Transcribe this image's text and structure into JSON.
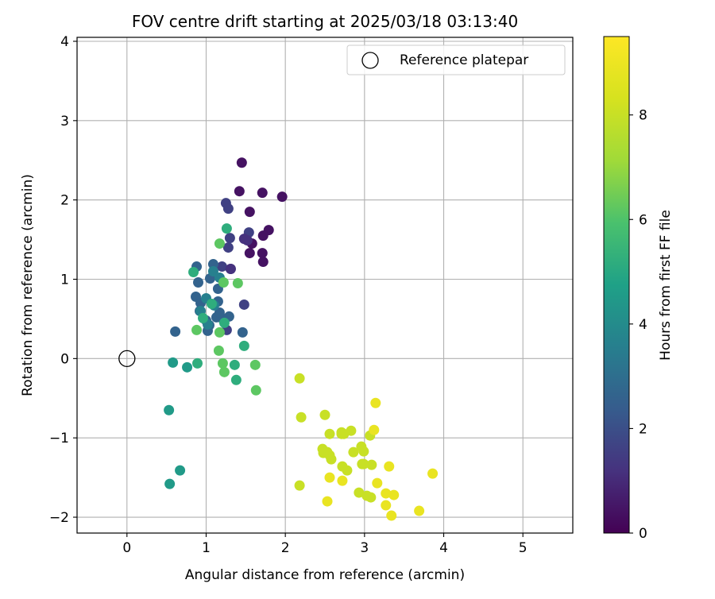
{
  "chart_data": {
    "type": "scatter",
    "title": "FOV centre drift starting at 2025/03/18 03:13:40",
    "xlabel": "Angular distance from reference (arcmin)",
    "ylabel": "Rotation from reference (arcmin)",
    "xlim": [
      -0.63,
      5.63
    ],
    "ylim": [
      -2.2,
      4.05
    ],
    "xticks": [
      "0",
      "1",
      "2",
      "3",
      "4",
      "5"
    ],
    "yticks": [
      "−2",
      "−1",
      "0",
      "1",
      "2",
      "3",
      "4"
    ],
    "grid": true,
    "legend": {
      "position": "top-right",
      "entries": [
        "Reference platepar"
      ]
    },
    "reference_point": {
      "x": 0,
      "y": 0,
      "label": "Reference platepar"
    },
    "colorbar": {
      "label": "Hours from first FF file",
      "colormap": "viridis",
      "range": [
        0,
        9.5
      ],
      "ticks": [
        "0",
        "2",
        "4",
        "6",
        "8"
      ]
    },
    "series": [
      {
        "x": [
          1.45,
          1.96,
          1.71,
          1.42,
          1.55,
          1.58,
          1.79,
          1.72,
          1.71,
          1.55,
          1.72
        ],
        "y": [
          2.47,
          2.04,
          2.09,
          2.11,
          1.85,
          1.45,
          1.62,
          1.55,
          1.33,
          1.33,
          1.22
        ],
        "hours": 0.4
      },
      {
        "x": [
          1.25,
          1.28,
          1.54,
          1.3,
          1.28,
          1.31,
          1.2,
          1.48,
          1.26
        ],
        "y": [
          1.96,
          1.89,
          1.59,
          1.52,
          1.4,
          1.13,
          1.16,
          0.68,
          0.36
        ],
        "hours": 1.6
      },
      {
        "x": [
          0.88,
          0.9,
          0.87,
          0.93,
          1.09,
          1.05,
          1.15,
          1.15,
          0.92,
          1.13,
          1.21,
          1.29,
          1.17,
          1.0,
          1.04,
          1.02,
          1.46,
          0.61
        ],
        "y": [
          1.16,
          0.96,
          0.78,
          0.7,
          1.19,
          1.01,
          0.88,
          0.72,
          0.6,
          0.52,
          0.5,
          0.53,
          0.58,
          0.48,
          0.42,
          0.35,
          0.33,
          0.34
        ],
        "hours": 2.6
      },
      {
        "x": [
          1.09,
          1.17,
          1.0,
          1.1,
          0.93,
          1.02
        ],
        "y": [
          1.1,
          1.02,
          0.76,
          0.67,
          0.6,
          0.43
        ],
        "hours": 3.6
      },
      {
        "x": [
          0.76,
          0.67,
          0.54,
          0.53,
          0.58
        ],
        "y": [
          -0.11,
          -1.41,
          -1.58,
          -0.65,
          -0.05
        ],
        "hours": 4.5
      },
      {
        "x": [
          1.26,
          0.84,
          0.96,
          1.07,
          1.23,
          1.48,
          1.36,
          1.38,
          0.89
        ],
        "y": [
          1.64,
          1.09,
          0.51,
          0.69,
          0.45,
          0.16,
          -0.08,
          -0.27,
          -0.06
        ],
        "hours": 5.2
      },
      {
        "x": [
          1.17,
          1.22,
          1.4,
          0.88,
          1.17,
          1.16,
          1.21,
          1.23,
          1.62,
          1.63
        ],
        "y": [
          1.45,
          0.96,
          0.95,
          0.36,
          0.33,
          0.1,
          -0.06,
          -0.17,
          -0.08,
          -0.4
        ],
        "hours": 6.2
      },
      {
        "x": [
          2.18,
          2.2,
          2.18,
          2.5,
          2.47,
          2.48,
          2.56,
          2.53,
          2.56,
          2.58,
          2.71,
          2.71,
          2.74,
          2.72,
          2.83,
          2.86,
          2.78,
          2.96,
          2.99,
          2.97,
          3.07,
          3.09,
          2.99,
          2.93,
          3.03,
          3.08
        ],
        "y": [
          -0.25,
          -0.74,
          -1.6,
          -0.71,
          -1.14,
          -1.19,
          -0.95,
          -1.18,
          -1.22,
          -1.27,
          -0.95,
          -0.93,
          -0.95,
          -1.36,
          -0.91,
          -1.18,
          -1.41,
          -1.11,
          -1.17,
          -1.33,
          -0.97,
          -1.34,
          -1.33,
          -1.69,
          -1.73,
          -1.75
        ],
        "hours": 8.0
      },
      {
        "x": [
          2.56,
          2.53,
          2.72,
          3.14,
          3.12,
          3.16,
          3.31,
          3.27,
          3.27,
          3.34,
          3.37,
          3.69,
          3.86
        ],
        "y": [
          -1.5,
          -1.8,
          -1.54,
          -0.56,
          -0.9,
          -1.57,
          -1.36,
          -1.7,
          -1.85,
          -1.98,
          -1.72,
          -1.92,
          -1.45
        ],
        "hours": 8.9
      },
      {
        "x": [
          1.48,
          1.31,
          1.52
        ],
        "y": [
          1.51,
          1.13,
          1.49
        ],
        "hours": 1.2
      }
    ]
  }
}
